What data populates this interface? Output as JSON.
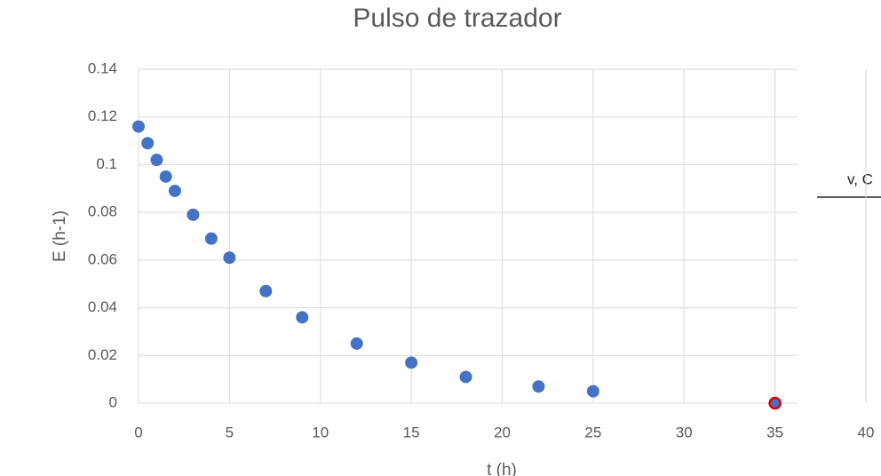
{
  "chart_data": {
    "type": "scatter",
    "title": "Pulso de trazador",
    "xlabel": "t (h)",
    "ylabel": "E (h-1)",
    "series": [
      {
        "color": "#4472c4",
        "x": [
          0,
          0.5,
          1,
          1.5,
          2,
          3,
          4,
          5,
          7,
          9,
          12,
          15,
          18,
          22,
          25
        ],
        "y": [
          0.116,
          0.109,
          0.102,
          0.095,
          0.089,
          0.079,
          0.069,
          0.061,
          0.047,
          0.036,
          0.025,
          0.017,
          0.011,
          0.007,
          0.005
        ]
      },
      {
        "color": "#4472c4",
        "edgecolor": "#e00000",
        "x": [
          35
        ],
        "y": [
          0
        ]
      }
    ],
    "xlim": [
      0,
      40
    ],
    "xticks": [
      0,
      5,
      10,
      15,
      20,
      25,
      30,
      35,
      40
    ],
    "ylim": [
      0,
      0.14
    ],
    "yticks": [
      0,
      0.02,
      0.04,
      0.06,
      0.08,
      0.1,
      0.12,
      0.14
    ],
    "grid": true
  },
  "fragment": "v, C"
}
